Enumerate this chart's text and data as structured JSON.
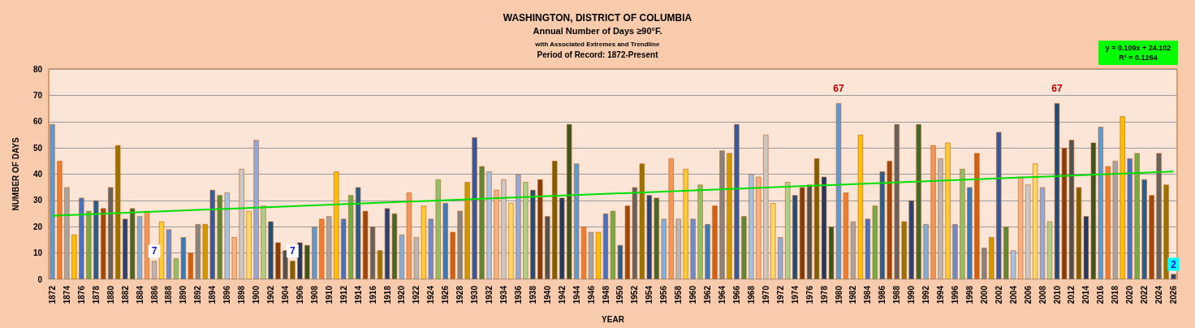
{
  "chart_data": {
    "type": "bar",
    "title": "WASHINGTON, DISTRICT OF COLUMBIA",
    "subtitle": "Annual Number of Days ≥90°F.",
    "annotations": [
      "with Associated Extremes and Trendline",
      "Period of Record: 1872-Present",
      "y = 0.109x + 24.102",
      "R² = 0.1264"
    ],
    "xlabel": "YEAR",
    "ylabel": "NUMBER OF DAYS",
    "categories": [
      "1872",
      null,
      "1874",
      null,
      "1876",
      null,
      "1878",
      null,
      "1880",
      null,
      "1882",
      null,
      "1884",
      null,
      "1886",
      null,
      "1888",
      null,
      "1890",
      null,
      "1892",
      null,
      "1894",
      null,
      "1896",
      null,
      "1898",
      null,
      "1900",
      null,
      "1902",
      null,
      "1904",
      null,
      "1906",
      null,
      "1908",
      null,
      "1910",
      null,
      "1912",
      null,
      "1914",
      null,
      "1916",
      null,
      "1918",
      null,
      "1920",
      null,
      "1922",
      null,
      "1924",
      null,
      "1926",
      null,
      "1928",
      null,
      "1930",
      null,
      "1932",
      null,
      "1934",
      null,
      "1936",
      null,
      "1938",
      null,
      "1940",
      null,
      "1942",
      null,
      "1944",
      null,
      "1946",
      null,
      "1948",
      null,
      "1950",
      null,
      "1952",
      null,
      "1954",
      null,
      "1956",
      null,
      "1958",
      null,
      "1960",
      null,
      "1962",
      null,
      "1964",
      null,
      "1966",
      null,
      "1968",
      null,
      "1970",
      null,
      "1972",
      null,
      "1974",
      null,
      "1976",
      null,
      "1978",
      null,
      "1980",
      null,
      "1982",
      null,
      "1984",
      null,
      "1986",
      null,
      "1988",
      null,
      "1990",
      null,
      "1992",
      null,
      "1994",
      null,
      "1996",
      null,
      "1998",
      null,
      "2000",
      null,
      "2002",
      null,
      "2004",
      null,
      "2006",
      null,
      "2008",
      null,
      "2010",
      null,
      "2012",
      null,
      "2014",
      null,
      "2016",
      null,
      "2018",
      null,
      "2020",
      null,
      "2022",
      null,
      "2024",
      null,
      "2026"
    ],
    "series": [
      {
        "values": [
          59,
          45,
          35,
          17,
          31,
          26,
          30,
          27,
          35,
          51,
          23,
          27,
          24,
          26,
          7,
          22,
          19,
          8,
          16,
          10,
          21,
          21,
          34,
          32,
          33,
          16,
          42,
          26,
          53,
          28,
          22,
          14,
          11,
          7,
          14,
          13,
          20,
          23,
          24,
          41,
          23,
          32,
          35,
          26,
          20,
          11,
          27,
          25,
          17,
          33,
          16,
          28,
          23,
          38,
          29,
          18,
          26,
          37,
          54,
          43,
          41,
          34,
          38,
          29,
          40,
          37,
          34,
          38,
          24,
          45,
          31,
          59,
          44,
          20,
          18,
          18,
          25,
          26,
          13,
          28,
          35,
          44,
          32,
          31,
          23,
          46,
          23,
          42,
          23,
          36,
          21,
          28,
          49,
          48,
          59,
          24,
          40,
          39,
          55,
          29,
          16,
          37,
          32,
          35,
          36,
          46,
          39,
          20,
          67,
          33,
          22,
          55,
          23,
          28,
          41,
          45,
          59,
          22,
          30,
          59,
          21,
          51,
          46,
          52,
          21,
          42,
          35,
          48,
          12,
          16,
          56,
          20,
          11,
          39,
          36,
          44,
          35,
          22,
          67,
          50,
          53,
          35,
          24,
          52,
          58,
          43,
          45,
          62,
          46,
          48,
          38,
          32,
          48,
          36,
          2
        ],
        "value_labels": [
          null,
          null,
          null,
          null,
          null,
          null,
          null,
          null,
          null,
          null,
          null,
          null,
          null,
          null,
          "7",
          null,
          null,
          null,
          null,
          null,
          null,
          null,
          null,
          null,
          null,
          null,
          null,
          null,
          null,
          null,
          null,
          null,
          null,
          "7",
          null,
          null,
          null,
          null,
          null,
          null,
          null,
          null,
          null,
          null,
          null,
          null,
          null,
          null,
          null,
          null,
          null,
          null,
          null,
          null,
          null,
          null,
          null,
          null,
          null,
          null,
          null,
          null,
          null,
          null,
          null,
          null,
          null,
          null,
          null,
          null,
          null,
          null,
          null,
          null,
          null,
          null,
          null,
          null,
          null,
          null,
          null,
          null,
          null,
          null,
          null,
          null,
          null,
          null,
          null,
          null,
          null,
          null,
          null,
          null,
          null,
          null,
          null,
          null,
          null,
          null,
          null,
          null,
          null,
          null,
          null,
          null,
          null,
          null,
          "67",
          null,
          null,
          null,
          null,
          null,
          null,
          null,
          null,
          null,
          null,
          null,
          null,
          null,
          null,
          null,
          null,
          null,
          null,
          null,
          null,
          null,
          null,
          null,
          null,
          null,
          null,
          null,
          null,
          null,
          "67",
          null,
          null,
          null,
          null,
          null,
          null,
          null,
          null,
          null,
          null,
          null,
          null,
          null,
          null,
          null,
          "2"
        ],
        "colors": [
          "#5b9bd5",
          "#ed7d31",
          "#a5a5a5",
          "#ffc000",
          "#4472c4",
          "#70ad47",
          "#255e91",
          "#9e480e",
          "#636363",
          "#997300",
          "#264478",
          "#43682b",
          "#7cafdd",
          "#f1975a",
          "#b7b7b7",
          "#ffcd33",
          "#698ed0",
          "#8cc168",
          "#327dc2",
          "#d26012",
          "#848484",
          "#cc9a00",
          "#335aa1",
          "#5a8a39",
          "#9dc3e6",
          "#f4b183",
          "#c9c9c9",
          "#ffd966",
          "#8faadc",
          "#a9d18e",
          "#1f4e79",
          "#843c0c",
          "#525252",
          "#7f6000",
          "#203864",
          "#385723",
          "#5b9bd5",
          "#ed7d31",
          "#a5a5a5",
          "#ffc000",
          "#4472c4",
          "#70ad47",
          "#255e91",
          "#9e480e",
          "#636363",
          "#997300",
          "#264478",
          "#43682b",
          "#7cafdd",
          "#f1975a",
          "#b7b7b7",
          "#ffcd33",
          "#698ed0",
          "#8cc168",
          "#327dc2",
          "#d26012",
          "#848484",
          "#cc9a00",
          "#335aa1",
          "#5a8a39",
          "#9dc3e6",
          "#f4b183",
          "#c9c9c9",
          "#ffd966",
          "#8faadc",
          "#a9d18e",
          "#1f4e79",
          "#843c0c",
          "#525252",
          "#7f6000",
          "#203864",
          "#385723",
          "#5b9bd5",
          "#ed7d31",
          "#a5a5a5",
          "#ffc000",
          "#4472c4",
          "#70ad47",
          "#255e91",
          "#9e480e",
          "#636363",
          "#997300",
          "#264478",
          "#43682b",
          "#7cafdd",
          "#f1975a",
          "#b7b7b7",
          "#ffcd33",
          "#698ed0",
          "#8cc168",
          "#327dc2",
          "#d26012",
          "#848484",
          "#cc9a00",
          "#335aa1",
          "#5a8a39",
          "#9dc3e6",
          "#f4b183",
          "#c9c9c9",
          "#ffd966",
          "#8faadc",
          "#a9d18e",
          "#1f4e79",
          "#843c0c",
          "#525252",
          "#7f6000",
          "#203864",
          "#385723",
          "#5b9bd5",
          "#ed7d31",
          "#a5a5a5",
          "#ffc000",
          "#4472c4",
          "#70ad47",
          "#255e91",
          "#9e480e",
          "#636363",
          "#997300",
          "#264478",
          "#43682b",
          "#7cafdd",
          "#f1975a",
          "#b7b7b7",
          "#ffcd33",
          "#698ed0",
          "#8cc168",
          "#327dc2",
          "#d26012",
          "#848484",
          "#cc9a00",
          "#335aa1",
          "#5a8a39",
          "#9dc3e6",
          "#f4b183",
          "#c9c9c9",
          "#ffd966",
          "#8faadc",
          "#a9d18e",
          "#1f4e79",
          "#843c0c",
          "#525252",
          "#7f6000",
          "#203864",
          "#385723",
          "#5b9bd5",
          "#ed7d31",
          "#a5a5a5",
          "#ffc000",
          "#4472c4",
          "#70ad47",
          "#255e91",
          "#9e480e",
          "#636363",
          "#997300",
          "#264478"
        ]
      },
      {
        "type": "line",
        "color": "#00e000",
        "values": [
          24.2,
          null,
          null,
          null,
          null,
          null,
          null,
          null,
          null,
          null,
          null,
          null,
          null,
          null,
          null,
          null,
          null,
          null,
          null,
          null,
          null,
          null,
          null,
          null,
          null,
          null,
          null,
          null,
          null,
          null,
          null,
          null,
          null,
          null,
          null,
          null,
          null,
          null,
          null,
          null,
          null,
          null,
          null,
          null,
          null,
          null,
          null,
          null,
          null,
          null,
          null,
          null,
          null,
          null,
          null,
          null,
          null,
          null,
          null,
          null,
          null,
          null,
          null,
          null,
          null,
          null,
          null,
          null,
          null,
          null,
          null,
          null,
          null,
          null,
          null,
          null,
          null,
          null,
          null,
          null,
          null,
          null,
          null,
          null,
          null,
          null,
          null,
          null,
          null,
          null,
          null,
          null,
          null,
          null,
          null,
          null,
          null,
          null,
          null,
          null,
          null,
          null,
          null,
          null,
          null,
          null,
          null,
          null,
          null,
          null,
          null,
          null,
          null,
          null,
          null,
          null,
          null,
          null,
          null,
          null,
          null,
          null,
          null,
          null,
          null,
          null,
          null,
          null,
          null,
          null,
          null,
          null,
          null,
          null,
          null,
          null,
          null,
          null,
          null,
          null,
          null,
          null,
          null,
          null,
          null,
          null,
          null,
          null,
          null,
          null,
          null,
          null,
          null,
          null,
          41.0
        ]
      }
    ],
    "ylim": [
      0,
      80
    ],
    "yticks": [
      0,
      10,
      20,
      30,
      40,
      50,
      60,
      70,
      80
    ],
    "grid": "y",
    "marker": "none",
    "line_style": "solid"
  }
}
